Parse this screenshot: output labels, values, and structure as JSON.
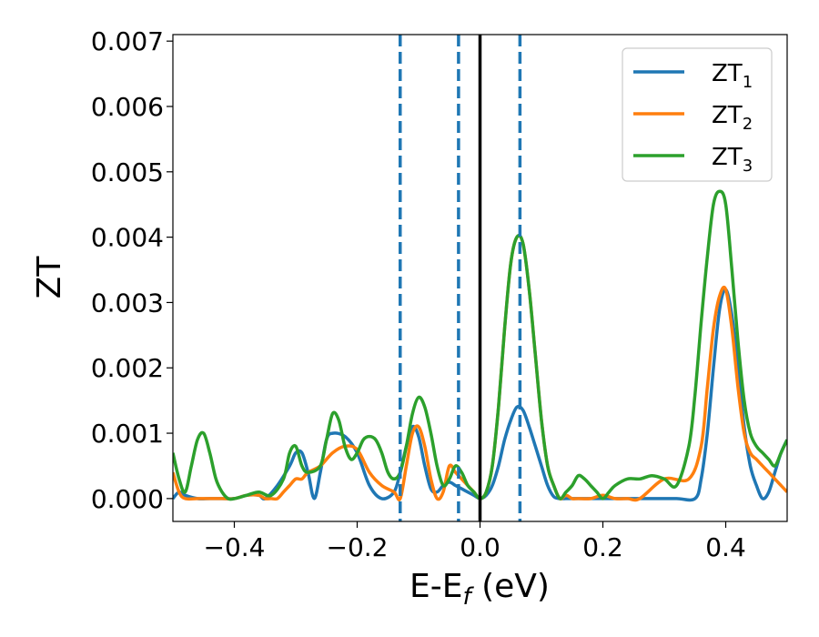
{
  "chart_data": {
    "type": "line",
    "xlabel": "E-E_f (eV)",
    "xlabel_main": "E-E",
    "xlabel_sub": "f",
    "xlabel_tail": " (eV)",
    "ylabel": "ZT",
    "xlim": [
      -0.5,
      0.5
    ],
    "ylim": [
      -0.00035,
      0.0071
    ],
    "xticks": [
      -0.4,
      -0.2,
      0.0,
      0.2,
      0.4
    ],
    "xtick_labels": [
      "−0.4",
      "−0.2",
      "0.0",
      "0.2",
      "0.4"
    ],
    "yticks": [
      0,
      0.001,
      0.002,
      0.003,
      0.004,
      0.005,
      0.006,
      0.007
    ],
    "ytick_labels": [
      "0.000",
      "0.001",
      "0.002",
      "0.003",
      "0.004",
      "0.005",
      "0.006",
      "0.007"
    ],
    "grid": false,
    "legend_position": "top-right",
    "vertical_lines": [
      {
        "x": -0.13,
        "style": "dashed",
        "color": "#1f77b4"
      },
      {
        "x": -0.035,
        "style": "dashed",
        "color": "#1f77b4"
      },
      {
        "x": 0.0,
        "style": "solid",
        "color": "#000000"
      },
      {
        "x": 0.065,
        "style": "dashed",
        "color": "#1f77b4"
      }
    ],
    "series": [
      {
        "name": "ZT_1",
        "label_main": "ZT",
        "label_sub": "1",
        "color": "#1f77b4",
        "x": [
          -0.5,
          -0.49,
          -0.48,
          -0.46,
          -0.44,
          -0.42,
          -0.4,
          -0.38,
          -0.36,
          -0.35,
          -0.33,
          -0.31,
          -0.3,
          -0.29,
          -0.28,
          -0.27,
          -0.26,
          -0.25,
          -0.24,
          -0.22,
          -0.2,
          -0.18,
          -0.16,
          -0.14,
          -0.13,
          -0.12,
          -0.11,
          -0.1,
          -0.09,
          -0.08,
          -0.07,
          -0.06,
          -0.05,
          -0.04,
          -0.03,
          -0.02,
          -0.01,
          0.0,
          0.01,
          0.02,
          0.03,
          0.04,
          0.05,
          0.06,
          0.07,
          0.08,
          0.09,
          0.1,
          0.11,
          0.12,
          0.13,
          0.14,
          0.15,
          0.16,
          0.18,
          0.2,
          0.24,
          0.28,
          0.32,
          0.35,
          0.36,
          0.37,
          0.38,
          0.39,
          0.4,
          0.41,
          0.42,
          0.43,
          0.44,
          0.45,
          0.46,
          0.47,
          0.48,
          0.49,
          0.5
        ],
        "y": [
          0.0,
          0.0001,
          5e-05,
          0.0,
          0.0,
          0.0,
          0.0,
          5e-05,
          5e-05,
          0.0,
          0.0002,
          0.0005,
          0.0007,
          0.0007,
          0.0004,
          0.0,
          0.0004,
          0.0009,
          0.001,
          0.00095,
          0.0007,
          0.0002,
          0.0,
          0.0001,
          0.0004,
          0.0008,
          0.0011,
          0.00095,
          0.0005,
          0.00015,
          0.0001,
          0.0002,
          0.00025,
          0.0002,
          0.00015,
          0.0001,
          5e-05,
          0.0,
          5e-05,
          0.0002,
          0.0005,
          0.0009,
          0.0012,
          0.0014,
          0.00135,
          0.0011,
          0.0008,
          0.0005,
          0.0002,
          3e-05,
          0.0,
          0.0,
          0.0,
          0.0,
          0.0,
          0.0,
          0.0,
          0.0,
          0.0,
          0.0,
          0.0003,
          0.001,
          0.002,
          0.0029,
          0.0032,
          0.0028,
          0.002,
          0.0011,
          0.0005,
          0.0002,
          0.0,
          0.0001,
          0.0004,
          0.0007,
          0.0009
        ]
      },
      {
        "name": "ZT_2",
        "label_main": "ZT",
        "label_sub": "2",
        "color": "#ff7f0e",
        "x": [
          -0.5,
          -0.49,
          -0.48,
          -0.46,
          -0.44,
          -0.42,
          -0.4,
          -0.38,
          -0.36,
          -0.35,
          -0.34,
          -0.33,
          -0.32,
          -0.31,
          -0.3,
          -0.29,
          -0.28,
          -0.26,
          -0.24,
          -0.22,
          -0.2,
          -0.18,
          -0.16,
          -0.14,
          -0.13,
          -0.12,
          -0.11,
          -0.1,
          -0.09,
          -0.08,
          -0.07,
          -0.06,
          -0.05,
          -0.04,
          -0.03,
          -0.02,
          -0.01,
          0.0,
          0.01,
          0.02,
          0.03,
          0.04,
          0.05,
          0.06,
          0.07,
          0.08,
          0.09,
          0.1,
          0.11,
          0.12,
          0.13,
          0.14,
          0.15,
          0.16,
          0.18,
          0.2,
          0.22,
          0.24,
          0.26,
          0.3,
          0.34,
          0.36,
          0.37,
          0.38,
          0.39,
          0.4,
          0.41,
          0.42,
          0.43,
          0.44,
          0.45,
          0.46,
          0.47,
          0.48,
          0.49,
          0.5
        ],
        "y": [
          0.0004,
          0.0001,
          0.0,
          0.0,
          0.0,
          0.0,
          0.0,
          5e-05,
          5e-05,
          0.0,
          0.0,
          0.0,
          0.0001,
          0.0002,
          0.0003,
          0.0003,
          0.0004,
          0.0005,
          0.0007,
          0.0008,
          0.00075,
          0.0004,
          0.0002,
          0.0001,
          0.0,
          0.0005,
          0.001,
          0.0011,
          0.0008,
          0.0003,
          0.0,
          0.0001,
          0.0005,
          0.0004,
          0.0003,
          0.0002,
          0.0001,
          0.0,
          0.0001,
          0.0005,
          0.0014,
          0.0026,
          0.0036,
          0.004,
          0.0039,
          0.0032,
          0.0022,
          0.0012,
          0.0005,
          0.0002,
          0.0,
          5e-05,
          0.0,
          0.0,
          0.0,
          5e-05,
          0.0,
          0.0,
          0.0,
          0.0003,
          0.0003,
          0.0008,
          0.0017,
          0.0026,
          0.0031,
          0.0032,
          0.0026,
          0.0017,
          0.001,
          0.0007,
          0.0006,
          0.0005,
          0.0004,
          0.0003,
          0.0002,
          0.0001
        ]
      },
      {
        "name": "ZT_3",
        "label_main": "ZT",
        "label_sub": "3",
        "color": "#2ca02c",
        "x": [
          -0.5,
          -0.49,
          -0.48,
          -0.47,
          -0.46,
          -0.45,
          -0.44,
          -0.43,
          -0.42,
          -0.41,
          -0.4,
          -0.38,
          -0.36,
          -0.34,
          -0.32,
          -0.31,
          -0.3,
          -0.29,
          -0.28,
          -0.26,
          -0.25,
          -0.24,
          -0.23,
          -0.22,
          -0.21,
          -0.2,
          -0.19,
          -0.18,
          -0.17,
          -0.16,
          -0.15,
          -0.14,
          -0.13,
          -0.12,
          -0.11,
          -0.1,
          -0.09,
          -0.08,
          -0.07,
          -0.06,
          -0.05,
          -0.04,
          -0.03,
          -0.02,
          -0.01,
          0.0,
          0.01,
          0.02,
          0.03,
          0.04,
          0.05,
          0.06,
          0.07,
          0.08,
          0.09,
          0.1,
          0.11,
          0.12,
          0.13,
          0.14,
          0.15,
          0.16,
          0.17,
          0.18,
          0.19,
          0.2,
          0.21,
          0.22,
          0.24,
          0.26,
          0.28,
          0.3,
          0.32,
          0.34,
          0.35,
          0.36,
          0.37,
          0.38,
          0.39,
          0.4,
          0.41,
          0.42,
          0.43,
          0.44,
          0.45,
          0.46,
          0.47,
          0.48,
          0.49,
          0.5
        ],
        "y": [
          0.0007,
          0.0003,
          0.0001,
          0.0005,
          0.0009,
          0.001,
          0.0007,
          0.0003,
          0.0001,
          0.0,
          0.0,
          5e-05,
          0.0001,
          5e-05,
          0.0003,
          0.0007,
          0.0008,
          0.0005,
          0.0004,
          0.0005,
          0.0009,
          0.0013,
          0.0012,
          0.0008,
          0.0006,
          0.0007,
          0.0009,
          0.00095,
          0.0009,
          0.0007,
          0.0004,
          0.0003,
          0.0004,
          0.0008,
          0.0013,
          0.00155,
          0.0014,
          0.001,
          0.0005,
          0.0002,
          0.0003,
          0.0005,
          0.0004,
          0.0002,
          0.0001,
          0.0,
          0.0001,
          0.0005,
          0.0014,
          0.0026,
          0.0036,
          0.004,
          0.0039,
          0.0032,
          0.0022,
          0.0012,
          0.0005,
          0.0002,
          0.0,
          0.0001,
          0.0002,
          0.00035,
          0.0003,
          0.0002,
          0.0001,
          0.0,
          0.0001,
          0.0002,
          0.0003,
          0.0003,
          0.00035,
          0.0003,
          0.0002,
          0.0008,
          0.0016,
          0.0027,
          0.0037,
          0.0045,
          0.0047,
          0.0045,
          0.0035,
          0.0024,
          0.0015,
          0.001,
          0.0008,
          0.0007,
          0.0006,
          0.0005,
          0.0007,
          0.0009
        ]
      }
    ]
  }
}
